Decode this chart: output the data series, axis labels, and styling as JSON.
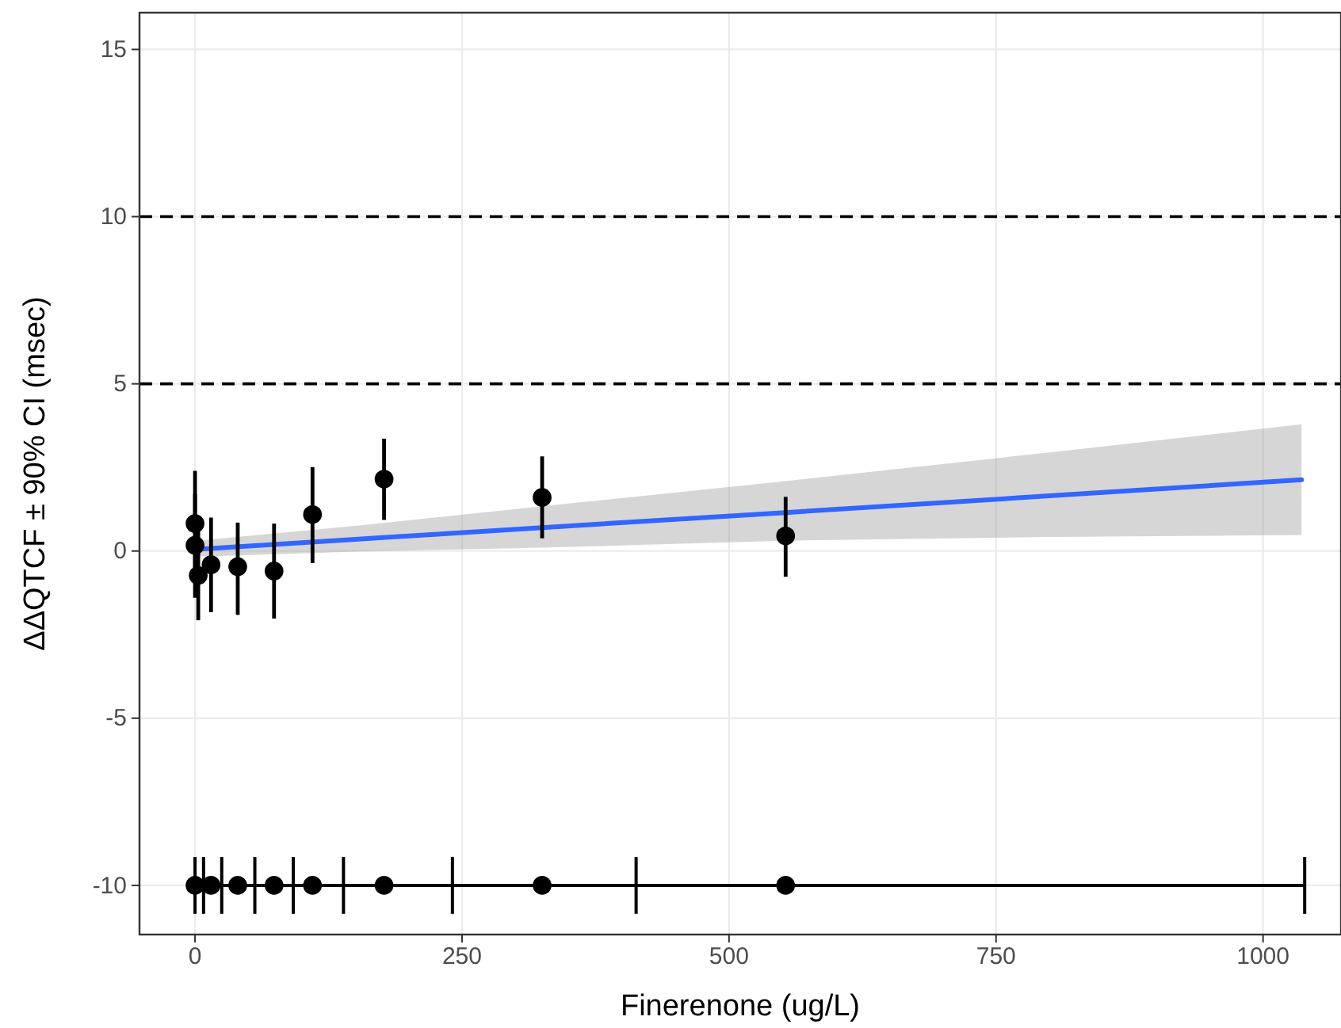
{
  "chart_data": {
    "type": "scatter",
    "xlabel": "Finerenone (ug/L)",
    "ylabel": "ΔΔQTCF ± 90% CI (msec)",
    "xlim": [
      -52,
      1073
    ],
    "ylim": [
      -11.47,
      16.1
    ],
    "xticks": [
      0,
      250,
      500,
      750,
      1000
    ],
    "yticks": [
      -10,
      -5,
      0,
      5,
      10,
      15
    ],
    "grid": true,
    "ref_lines": [
      {
        "axis": "y",
        "value": 10,
        "line_style": "dashed",
        "color": "#000000"
      },
      {
        "axis": "y",
        "value": 5,
        "line_style": "dashed",
        "color": "#000000"
      }
    ],
    "series": [
      {
        "type": "line",
        "color": "#3366ff",
        "x": [
          0,
          150,
          325,
          553,
          800,
          1036
        ],
        "values": [
          0.05,
          0.35,
          0.7,
          1.15,
          1.65,
          2.13
        ],
        "lower": [
          -0.17,
          -0.02,
          0.1,
          0.31,
          0.42,
          0.48
        ],
        "upper": [
          0.3,
          0.75,
          1.34,
          2.09,
          2.95,
          3.79
        ]
      },
      {
        "color": "#000000",
        "marker": "circle",
        "x": [
          0,
          0,
          3,
          15,
          40,
          74,
          110,
          177,
          325,
          553
        ],
        "values": [
          0.82,
          0.17,
          -0.73,
          -0.41,
          -0.47,
          -0.6,
          1.09,
          2.15,
          1.6,
          0.45
        ],
        "errors": [
          [
            -0.8,
            2.4
          ],
          [
            -1.4,
            1.7
          ],
          [
            -2.07,
            0.7
          ],
          [
            -1.83,
            1.0
          ],
          [
            -1.91,
            0.85
          ],
          [
            -2.02,
            0.82
          ],
          [
            -0.36,
            2.51
          ],
          [
            0.93,
            3.36
          ],
          [
            0.38,
            2.83
          ],
          [
            -0.77,
            1.62
          ]
        ]
      },
      {
        "type": "line",
        "color": "#000000",
        "x": [
          0,
          8,
          25,
          56,
          92,
          139,
          241,
          413,
          1039
        ],
        "values": [
          -10,
          -10,
          -10,
          -10,
          -10,
          -10,
          -10,
          -10,
          -10
        ],
        "errors": [
          [
            -10.85,
            -9.15
          ],
          [
            -10.85,
            -9.15
          ],
          [
            -10.85,
            -9.15
          ],
          [
            -10.85,
            -9.15
          ],
          [
            -10.85,
            -9.15
          ],
          [
            -10.85,
            -9.15
          ],
          [
            -10.85,
            -9.15
          ],
          [
            -10.85,
            -9.15
          ],
          [
            -10.85,
            -9.15
          ]
        ]
      },
      {
        "color": "#000000",
        "marker": "circle",
        "x": [
          0,
          15,
          40,
          74,
          110,
          177,
          325,
          553
        ],
        "values": [
          -10,
          -10,
          -10,
          -10,
          -10,
          -10,
          -10,
          -10
        ]
      }
    ]
  }
}
